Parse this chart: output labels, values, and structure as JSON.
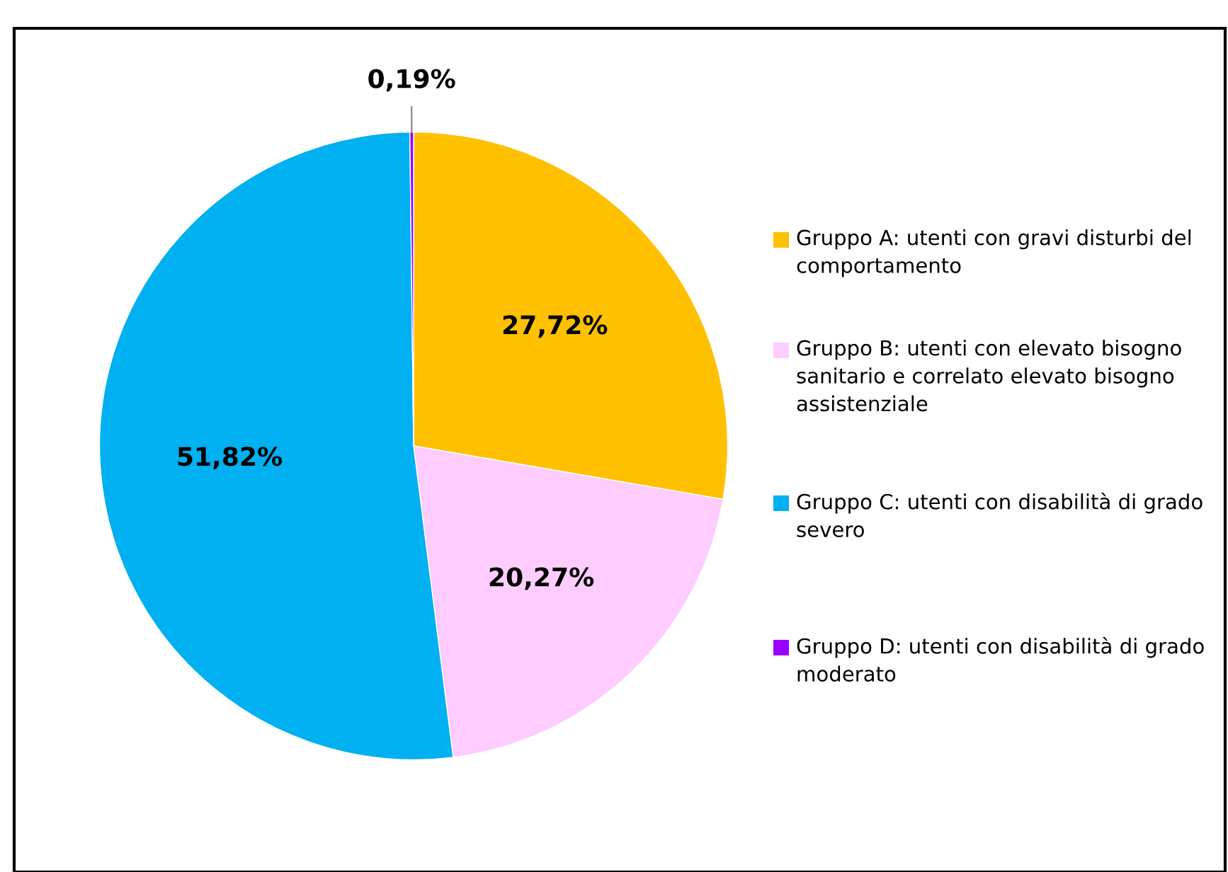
{
  "chart_data": {
    "type": "pie",
    "categories": [
      "Gruppo A: utenti con gravi disturbi del comportamento",
      "Gruppo B: utenti con elevato bisogno sanitario e correlato elevato bisogno assistenziale",
      "Gruppo C: utenti con disabilità di grado severo",
      "Gruppo D: utenti con disabilità di grado moderato"
    ],
    "values": [
      27.72,
      20.27,
      51.82,
      0.19
    ],
    "value_labels": [
      "27,72%",
      "20,27%",
      "51,82%",
      "0,19%"
    ],
    "colors": [
      "#ffc000",
      "#ffccff",
      "#00b0f0",
      "#9900ff"
    ],
    "legend": "right"
  }
}
